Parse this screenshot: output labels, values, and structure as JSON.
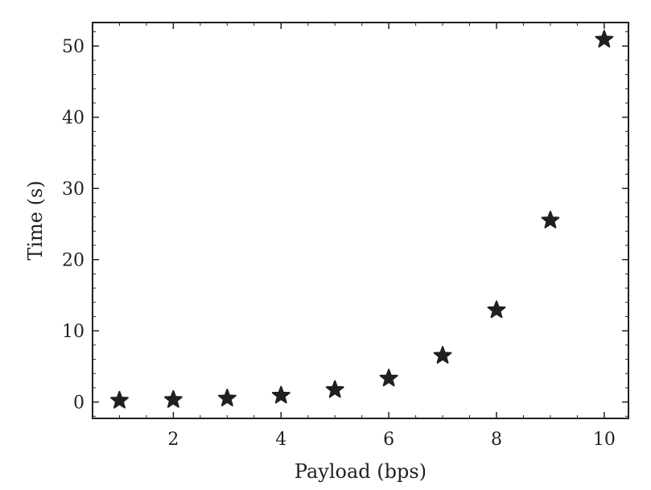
{
  "chart_data": {
    "type": "scatter",
    "xlabel": "Payload (bps)",
    "ylabel": "Time (s)",
    "xlim": [
      0.5,
      10.45
    ],
    "ylim": [
      -2.3,
      53.3
    ],
    "xticks": [
      2,
      4,
      6,
      8,
      10
    ],
    "yticks": [
      0,
      10,
      20,
      30,
      40,
      50
    ],
    "xtick_labels": [
      "2",
      "4",
      "6",
      "8",
      "10"
    ],
    "ytick_labels": [
      "0",
      "10",
      "20",
      "30",
      "40",
      "50"
    ],
    "marker": "star",
    "color": "#231f20",
    "grid": false,
    "series": [
      {
        "x": [
          1,
          2,
          3,
          4,
          5,
          6,
          7,
          8,
          9,
          10
        ],
        "y": [
          0.1,
          0.2,
          0.4,
          0.8,
          1.6,
          3.2,
          6.4,
          12.8,
          25.4,
          50.8
        ]
      }
    ]
  }
}
